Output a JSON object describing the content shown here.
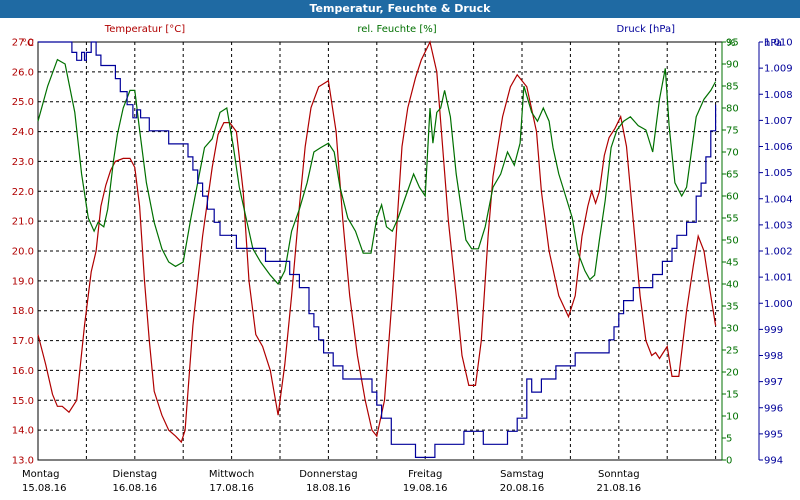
{
  "window": {
    "title": "Temperatur, Feuchte & Druck"
  },
  "colors": {
    "temp": "#b00000",
    "hum": "#007000",
    "press": "#00009a",
    "title_bg": "#1f6aa3"
  },
  "chart_data": {
    "type": "line",
    "title": "Temperatur, Feuchte & Druck",
    "x_ticks": [
      {
        "day": "Montag",
        "date": "15.08.16"
      },
      {
        "day": "Dienstag",
        "date": "16.08.16"
      },
      {
        "day": "Mittwoch",
        "date": "17.08.16"
      },
      {
        "day": "Donnerstag",
        "date": "18.08.16"
      },
      {
        "day": "Freitag",
        "date": "19.08.16"
      },
      {
        "day": "Samstag",
        "date": "20.08.16"
      },
      {
        "day": "Sonntag",
        "date": "21.08.16"
      }
    ],
    "x_range_days": [
      0,
      7.2
    ],
    "grid": true,
    "axes": {
      "temp": {
        "unit": "°C",
        "range": [
          13.0,
          27.0
        ],
        "ticks": [
          "13.0",
          "14.0",
          "15.0",
          "16.0",
          "17.0",
          "18.0",
          "19.0",
          "20.0",
          "21.0",
          "22.0",
          "23.0",
          "24.0",
          "25.0",
          "26.0",
          "27.0"
        ]
      },
      "hum": {
        "unit": "%",
        "range": [
          0,
          95
        ],
        "ticks": [
          "0",
          "5",
          "10",
          "15",
          "20",
          "25",
          "30",
          "35",
          "40",
          "45",
          "50",
          "55",
          "60",
          "65",
          "70",
          "75",
          "80",
          "85",
          "90",
          "95"
        ]
      },
      "press": {
        "unit": "hPa",
        "range": [
          994,
          1010
        ],
        "ticks": [
          "994",
          "995",
          "996",
          "997",
          "998",
          "999",
          "1.000",
          "1.001",
          "1.002",
          "1.003",
          "1.004",
          "1.005",
          "1.006",
          "1.007",
          "1.008",
          "1.009",
          "1.010"
        ]
      }
    },
    "series": [
      {
        "name": "Temperatur [°C]",
        "key": "temp",
        "axis": "temp",
        "x": [
          0,
          0.08,
          0.15,
          0.2,
          0.25,
          0.32,
          0.4,
          0.48,
          0.55,
          0.6,
          0.65,
          0.7,
          0.75,
          0.8,
          0.88,
          0.95,
          1.0,
          1.05,
          1.1,
          1.15,
          1.2,
          1.28,
          1.35,
          1.42,
          1.48,
          1.52,
          1.6,
          1.7,
          1.8,
          1.86,
          1.92,
          1.98,
          2.05,
          2.12,
          2.18,
          2.25,
          2.32,
          2.4,
          2.48,
          2.55,
          2.62,
          2.7,
          2.76,
          2.82,
          2.9,
          3.0,
          3.08,
          3.15,
          3.22,
          3.3,
          3.38,
          3.45,
          3.5,
          3.58,
          3.66,
          3.72,
          3.76,
          3.82,
          3.9,
          3.96,
          4.05,
          4.12,
          4.18,
          4.24,
          4.32,
          4.38,
          4.45,
          4.52,
          4.58,
          4.65,
          4.7,
          4.8,
          4.88,
          4.95,
          5.05,
          5.15,
          5.2,
          5.28,
          5.38,
          5.48,
          5.55,
          5.62,
          5.68,
          5.72,
          5.76,
          5.8,
          5.85,
          5.9,
          5.96,
          6.02,
          6.08,
          6.15,
          6.22,
          6.28,
          6.34,
          6.38,
          6.42,
          6.46,
          6.5,
          6.55,
          6.62,
          6.7,
          6.77,
          6.82,
          6.88,
          6.95,
          7.0
        ],
        "y": [
          17.2,
          16.2,
          15.2,
          14.8,
          14.8,
          14.6,
          15.0,
          17.5,
          19.3,
          20.0,
          21.5,
          22.2,
          22.7,
          23.0,
          23.1,
          23.1,
          22.8,
          21.5,
          19.0,
          17.0,
          15.3,
          14.5,
          14.0,
          13.8,
          13.6,
          14.0,
          17.5,
          20.5,
          22.8,
          23.9,
          24.3,
          24.3,
          24.0,
          22.0,
          19.0,
          17.2,
          16.8,
          16.0,
          14.5,
          16.2,
          18.5,
          21.5,
          23.5,
          24.8,
          25.5,
          25.7,
          24.0,
          21.0,
          18.5,
          16.5,
          15.0,
          14.0,
          13.8,
          15.0,
          18.5,
          21.5,
          23.5,
          24.8,
          25.8,
          26.4,
          27.0,
          26.0,
          23.5,
          21.0,
          18.5,
          16.5,
          15.5,
          15.5,
          17.0,
          20.5,
          22.5,
          24.5,
          25.5,
          25.9,
          25.5,
          24.0,
          22.0,
          20.0,
          18.5,
          17.8,
          18.5,
          20.5,
          21.5,
          22.0,
          21.6,
          22.0,
          23.2,
          23.8,
          24.1,
          24.5,
          23.5,
          21.0,
          18.5,
          17.0,
          16.5,
          16.6,
          16.4,
          16.6,
          16.8,
          15.8,
          15.8,
          18.0,
          19.5,
          20.5,
          20.0,
          18.5,
          17.5
        ]
      },
      {
        "name": "rel. Feuchte [%]",
        "key": "hum",
        "axis": "hum",
        "x": [
          0,
          0.1,
          0.2,
          0.28,
          0.38,
          0.45,
          0.52,
          0.58,
          0.62,
          0.68,
          0.72,
          0.78,
          0.82,
          0.88,
          0.95,
          1.0,
          1.05,
          1.12,
          1.2,
          1.28,
          1.35,
          1.42,
          1.5,
          1.58,
          1.65,
          1.72,
          1.8,
          1.88,
          1.95,
          2.02,
          2.08,
          2.15,
          2.22,
          2.3,
          2.4,
          2.48,
          2.55,
          2.62,
          2.7,
          2.78,
          2.85,
          2.92,
          3.0,
          3.06,
          3.12,
          3.2,
          3.28,
          3.36,
          3.44,
          3.5,
          3.55,
          3.6,
          3.66,
          3.72,
          3.8,
          3.88,
          3.94,
          4.0,
          4.05,
          4.08,
          4.12,
          4.16,
          4.2,
          4.26,
          4.32,
          4.38,
          4.42,
          4.48,
          4.55,
          4.62,
          4.7,
          4.78,
          4.85,
          4.92,
          4.98,
          5.02,
          5.06,
          5.1,
          5.16,
          5.22,
          5.28,
          5.32,
          5.38,
          5.45,
          5.52,
          5.58,
          5.65,
          5.7,
          5.75,
          5.8,
          5.86,
          5.92,
          5.98,
          6.05,
          6.12,
          6.2,
          6.28,
          6.35,
          6.42,
          6.48,
          6.52,
          6.58,
          6.65,
          6.7,
          6.75,
          6.8,
          6.88,
          6.95,
          7.0
        ],
        "y": [
          77,
          85,
          91,
          90,
          79,
          65,
          55,
          52,
          54,
          53,
          57,
          68,
          74,
          80,
          84,
          84,
          75,
          63,
          54,
          48,
          45,
          44,
          45,
          55,
          63,
          71,
          73,
          79,
          80,
          71,
          62,
          55,
          48,
          45,
          42,
          40,
          43,
          52,
          57,
          63,
          70,
          71,
          72,
          70,
          62,
          55,
          52,
          47,
          47,
          55,
          58,
          53,
          52,
          55,
          60,
          65,
          62,
          60,
          80,
          72,
          79,
          80,
          84,
          78,
          65,
          56,
          50,
          48,
          48,
          53,
          62,
          65,
          70,
          67,
          72,
          85,
          82,
          79,
          77,
          80,
          77,
          71,
          65,
          60,
          55,
          47,
          43,
          41,
          42,
          50,
          59,
          71,
          75,
          77,
          78,
          76,
          75,
          70,
          82,
          89,
          76,
          63,
          60,
          62,
          70,
          78,
          82,
          84,
          86
        ]
      },
      {
        "name": "Druck [hPa]",
        "key": "press",
        "axis": "press",
        "x": [
          0,
          0.3,
          0.35,
          0.4,
          0.45,
          0.48,
          0.5,
          0.55,
          0.6,
          0.65,
          0.7,
          0.8,
          0.85,
          0.92,
          0.98,
          1.02,
          1.06,
          1.1,
          1.15,
          1.25,
          1.35,
          1.45,
          1.5,
          1.55,
          1.6,
          1.65,
          1.7,
          1.75,
          1.82,
          1.88,
          1.95,
          2.05,
          2.15,
          2.25,
          2.35,
          2.45,
          2.5,
          2.6,
          2.7,
          2.8,
          2.85,
          2.9,
          2.95,
          3.05,
          3.15,
          3.25,
          3.3,
          3.35,
          3.45,
          3.5,
          3.55,
          3.65,
          3.75,
          3.8,
          3.9,
          4.0,
          4.1,
          4.15,
          4.25,
          4.35,
          4.4,
          4.45,
          4.55,
          4.6,
          4.7,
          4.8,
          4.85,
          4.9,
          4.95,
          5.05,
          5.1,
          5.2,
          5.3,
          5.35,
          5.45,
          5.55,
          5.65,
          5.75,
          5.85,
          5.9,
          5.95,
          6.0,
          6.05,
          6.15,
          6.25,
          6.35,
          6.45,
          6.55,
          6.6,
          6.7,
          6.8,
          6.85,
          6.9,
          6.95,
          7.0
        ],
        "y": [
          1010,
          1010,
          1009.6,
          1009.3,
          1009.6,
          1009.3,
          1009.6,
          1010,
          1009.5,
          1009.1,
          1009.1,
          1008.6,
          1008.1,
          1007.6,
          1007.1,
          1007.4,
          1007.1,
          1007.1,
          1006.6,
          1006.6,
          1006.1,
          1006.1,
          1006.1,
          1005.6,
          1005.1,
          1004.6,
          1004.1,
          1003.6,
          1003.1,
          1002.6,
          1002.6,
          1002.1,
          1002.1,
          1002.1,
          1001.6,
          1001.6,
          1001.6,
          1001.1,
          1000.6,
          999.6,
          999.1,
          998.6,
          998.1,
          997.6,
          997.1,
          997.1,
          997.1,
          997.1,
          996.6,
          996.1,
          995.6,
          994.6,
          994.6,
          994.6,
          994.1,
          994.1,
          994.6,
          994.6,
          994.6,
          994.6,
          995.1,
          995.1,
          995.1,
          994.6,
          994.6,
          994.6,
          995.1,
          995.1,
          995.6,
          997.1,
          996.6,
          997.1,
          997.1,
          997.6,
          997.6,
          998.1,
          998.1,
          998.1,
          998.1,
          998.6,
          999.1,
          999.6,
          1000.1,
          1000.6,
          1000.6,
          1001.1,
          1001.6,
          1002.1,
          1002.6,
          1003.1,
          1004.1,
          1004.6,
          1005.6,
          1006.6,
          1007.6
        ]
      }
    ]
  }
}
